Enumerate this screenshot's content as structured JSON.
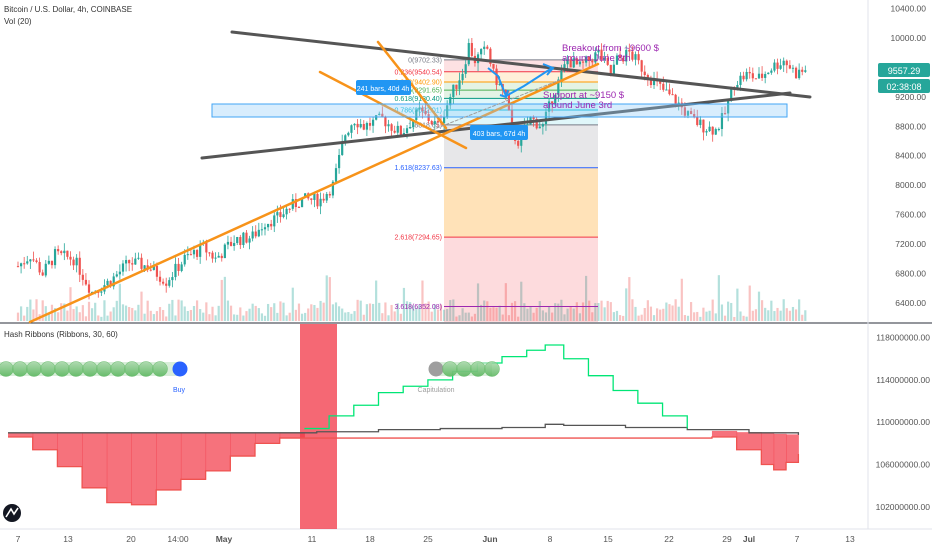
{
  "chart_data": [
    {
      "type": "candlestick",
      "title": "Bitcoin / U.S. Dollar, 4h, COINBASE",
      "volume_label": "Vol (20)",
      "y_ticks": [
        "10400.00",
        "10000.00",
        "9600.00",
        "9200.00",
        "8800.00",
        "8400.00",
        "8000.00",
        "7600.00",
        "7200.00",
        "6800.00",
        "6400.00"
      ],
      "y_tick_values": [
        10400,
        10000,
        9600,
        9200,
        8800,
        8400,
        8000,
        7600,
        7200,
        6800,
        6400
      ],
      "ylim": [
        6150,
        10520
      ],
      "x_ticks": [
        "7",
        "13",
        "20",
        "14:00",
        "May",
        "11",
        "18",
        "25",
        "Jun",
        "8",
        "15",
        "22",
        "29",
        "Jul",
        "7",
        "13"
      ],
      "price_path": [
        [
          0,
          6900
        ],
        [
          0.1,
          7050
        ],
        [
          0.2,
          6800
        ],
        [
          0.3,
          7050
        ],
        [
          0.45,
          7000
        ],
        [
          0.6,
          6550
        ],
        [
          0.75,
          6700
        ],
        [
          0.9,
          6950
        ],
        [
          1.05,
          6900
        ],
        [
          1.2,
          6700
        ],
        [
          1.35,
          7000
        ],
        [
          1.5,
          7150
        ],
        [
          1.6,
          7000
        ],
        [
          1.75,
          7250
        ],
        [
          1.9,
          7300
        ],
        [
          2.0,
          7500
        ],
        [
          2.1,
          7550
        ],
        [
          2.2,
          7700
        ],
        [
          2.3,
          7800
        ],
        [
          2.45,
          7800
        ],
        [
          2.55,
          8000
        ],
        [
          2.65,
          8700
        ],
        [
          2.72,
          8900
        ],
        [
          2.8,
          8800
        ],
        [
          2.95,
          8900
        ],
        [
          3.1,
          8700
        ],
        [
          3.25,
          9000
        ],
        [
          3.4,
          8800
        ],
        [
          3.5,
          9200
        ],
        [
          3.6,
          9550
        ],
        [
          3.65,
          9900
        ],
        [
          3.7,
          9700
        ],
        [
          3.8,
          9850
        ],
        [
          3.85,
          9500
        ],
        [
          3.95,
          9200
        ],
        [
          4.0,
          8700
        ],
        [
          4.05,
          8600
        ],
        [
          4.15,
          8900
        ],
        [
          4.25,
          8800
        ],
        [
          4.35,
          9300
        ],
        [
          4.45,
          9700
        ],
        [
          4.55,
          9600
        ],
        [
          4.7,
          9800
        ],
        [
          4.8,
          9500
        ],
        [
          4.85,
          9700
        ],
        [
          4.95,
          9800
        ],
        [
          5.05,
          9600
        ],
        [
          5.15,
          9400
        ],
        [
          5.25,
          9250
        ],
        [
          5.35,
          9100
        ],
        [
          5.45,
          8900
        ],
        [
          5.55,
          8800
        ],
        [
          5.65,
          8750
        ],
        [
          5.72,
          8950
        ],
        [
          5.8,
          9400
        ],
        [
          5.9,
          9500
        ],
        [
          6.0,
          9450
        ],
        [
          6.1,
          9600
        ],
        [
          6.2,
          9700
        ],
        [
          6.3,
          9520
        ],
        [
          6.38,
          9560
        ]
      ],
      "current_price": "9557.29",
      "countdown": "02:38:08",
      "fib_levels": [
        {
          "label": "0(9702.33)",
          "value": 9702.33,
          "color": "#787b86"
        },
        {
          "label": "0.236(9540.54)",
          "value": 9540.54,
          "color": "#f23645"
        },
        {
          "label": "0.382(9402.90)",
          "value": 9402.9,
          "color": "#ff9800"
        },
        {
          "label": "0.5(9291.65)",
          "value": 9291.65,
          "color": "#4caf50"
        },
        {
          "label": "0.618(9180.40)",
          "value": 9180.4,
          "color": "#089981"
        },
        {
          "label": "0.786(9022.01)",
          "value": 9022.01,
          "color": "#00bcd4"
        },
        {
          "label": "1(8818.65)",
          "value": 8818.65,
          "color": "#787b86"
        },
        {
          "label": "1.618(8237.63)",
          "value": 8237.63,
          "color": "#2962ff"
        },
        {
          "label": "2.618(7294.65)",
          "value": 7294.65,
          "color": "#f23645"
        },
        {
          "label": "3.618(6352.08)",
          "value": 6352.08,
          "color": "#9c27b0"
        }
      ],
      "annotations": [
        {
          "text": "241 bars, 40d 4h",
          "kind": "measure"
        },
        {
          "text": "403 bars, 67d 4h",
          "kind": "measure"
        },
        {
          "text": "Breakout from  ~9600 $",
          "kind": "note",
          "color": "#9c27b0"
        },
        {
          "text": "around June 8th",
          "kind": "note",
          "color": "#9c27b0"
        },
        {
          "text": "Support at  ~9150 $",
          "kind": "note",
          "color": "#9c27b0"
        },
        {
          "text": "around June 3rd",
          "kind": "note",
          "color": "#9c27b0"
        }
      ]
    },
    {
      "type": "area",
      "title": "Hash Ribbons (Ribbons, 30, 60)",
      "y_ticks": [
        "118000000.00",
        "114000000.00",
        "110000000.00",
        "106000000.00",
        "102000000.00"
      ],
      "y_tick_values": [
        118000000,
        114000000,
        110000000,
        106000000,
        102000000
      ],
      "ylim": [
        100000000,
        119000000
      ],
      "series": [
        {
          "name": "30",
          "points": [
            [
              0,
              108600000
            ],
            [
              0.2,
              107400000
            ],
            [
              0.4,
              105800000
            ],
            [
              0.6,
              103800000
            ],
            [
              0.8,
              102400000
            ],
            [
              1.0,
              102200000
            ],
            [
              1.2,
              103600000
            ],
            [
              1.4,
              104600000
            ],
            [
              1.6,
              105400000
            ],
            [
              1.8,
              106800000
            ],
            [
              2.0,
              108000000
            ],
            [
              2.2,
              108500000
            ],
            [
              2.4,
              109400000
            ],
            [
              2.6,
              110600000
            ],
            [
              2.8,
              111600000
            ],
            [
              3.0,
              112800000
            ],
            [
              3.2,
              113400000
            ],
            [
              3.4,
              114000000
            ],
            [
              3.6,
              114800000
            ],
            [
              3.8,
              115600000
            ],
            [
              4.0,
              116200000
            ],
            [
              4.2,
              116800000
            ],
            [
              4.35,
              117300000
            ],
            [
              4.5,
              116000000
            ],
            [
              4.7,
              114400000
            ],
            [
              4.9,
              113000000
            ],
            [
              5.1,
              111800000
            ],
            [
              5.3,
              110600000
            ],
            [
              5.5,
              109400000
            ],
            [
              5.7,
              108600000
            ],
            [
              5.9,
              107400000
            ],
            [
              6.1,
              106000000
            ],
            [
              6.2,
              105500000
            ],
            [
              6.3,
              106200000
            ],
            [
              6.4,
              107000000
            ]
          ]
        },
        {
          "name": "60",
          "points": [
            [
              0,
              109000000
            ],
            [
              1.0,
              109000000
            ],
            [
              2.0,
              109000000
            ],
            [
              2.5,
              109100000
            ],
            [
              3.0,
              109300000
            ],
            [
              3.5,
              109400000
            ],
            [
              4.0,
              109500000
            ],
            [
              4.35,
              109800000
            ],
            [
              4.5,
              109700000
            ],
            [
              5.0,
              109500000
            ],
            [
              5.5,
              109300000
            ],
            [
              6.0,
              109000000
            ],
            [
              6.4,
              108800000
            ]
          ]
        }
      ],
      "signals": [
        {
          "label": "Buy",
          "color": "#2962ff"
        },
        {
          "label": "Capitulation",
          "color": "#9e9e9e"
        }
      ]
    }
  ]
}
